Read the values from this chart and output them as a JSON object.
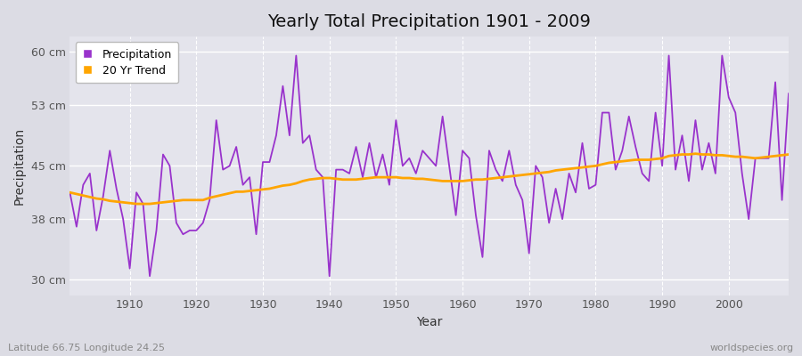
{
  "title": "Yearly Total Precipitation 1901 - 2009",
  "xlabel": "Year",
  "ylabel": "Precipitation",
  "subtitle_left": "Latitude 66.75 Longitude 24.25",
  "subtitle_right": "worldspecies.org",
  "legend_labels": [
    "Precipitation",
    "20 Yr Trend"
  ],
  "precip_color": "#9933CC",
  "trend_color": "#FFA500",
  "bg_color": "#DCDCE4",
  "plot_bg_color": "#E4E4EC",
  "ylim": [
    28,
    62
  ],
  "yticks": [
    30,
    38,
    45,
    53,
    60
  ],
  "ytick_labels": [
    "30 cm",
    "38 cm",
    "45 cm",
    "53 cm",
    "60 cm"
  ],
  "years": [
    1901,
    1902,
    1903,
    1904,
    1905,
    1906,
    1907,
    1908,
    1909,
    1910,
    1911,
    1912,
    1913,
    1914,
    1915,
    1916,
    1917,
    1918,
    1919,
    1920,
    1921,
    1922,
    1923,
    1924,
    1925,
    1926,
    1927,
    1928,
    1929,
    1930,
    1931,
    1932,
    1933,
    1934,
    1935,
    1936,
    1937,
    1938,
    1939,
    1940,
    1941,
    1942,
    1943,
    1944,
    1945,
    1946,
    1947,
    1948,
    1949,
    1950,
    1951,
    1952,
    1953,
    1954,
    1955,
    1956,
    1957,
    1958,
    1959,
    1960,
    1961,
    1962,
    1963,
    1964,
    1965,
    1966,
    1967,
    1968,
    1969,
    1970,
    1971,
    1972,
    1973,
    1974,
    1975,
    1976,
    1977,
    1978,
    1979,
    1980,
    1981,
    1982,
    1983,
    1984,
    1985,
    1986,
    1987,
    1988,
    1989,
    1990,
    1991,
    1992,
    1993,
    1994,
    1995,
    1996,
    1997,
    1998,
    1999,
    2000,
    2001,
    2002,
    2003,
    2004,
    2005,
    2006,
    2007,
    2008,
    2009
  ],
  "precip": [
    41.5,
    37.0,
    42.5,
    44.0,
    36.5,
    41.0,
    47.0,
    42.0,
    38.0,
    31.5,
    41.5,
    40.0,
    30.5,
    36.5,
    46.5,
    45.0,
    37.5,
    36.0,
    36.5,
    36.5,
    37.5,
    40.5,
    51.0,
    44.5,
    45.0,
    47.5,
    42.5,
    43.5,
    36.0,
    45.5,
    45.5,
    49.0,
    55.5,
    49.0,
    59.5,
    48.0,
    49.0,
    44.5,
    43.5,
    30.5,
    44.5,
    44.5,
    44.0,
    47.5,
    43.5,
    48.0,
    43.5,
    46.5,
    42.5,
    51.0,
    45.0,
    46.0,
    44.0,
    47.0,
    46.0,
    45.0,
    51.5,
    45.0,
    38.5,
    47.0,
    46.0,
    38.5,
    33.0,
    47.0,
    44.5,
    43.0,
    47.0,
    42.5,
    40.5,
    33.5,
    45.0,
    43.5,
    37.5,
    42.0,
    38.0,
    44.0,
    41.5,
    48.0,
    42.0,
    42.5,
    52.0,
    52.0,
    44.5,
    47.0,
    51.5,
    47.5,
    44.0,
    43.0,
    52.0,
    45.0,
    59.5,
    44.5,
    49.0,
    43.0,
    51.0,
    44.5,
    48.0,
    44.0,
    59.5,
    54.0,
    52.0,
    44.0,
    38.0,
    46.0,
    46.0,
    46.0,
    56.0,
    40.5,
    54.5
  ],
  "trend": [
    41.5,
    41.3,
    41.1,
    40.9,
    40.7,
    40.6,
    40.4,
    40.3,
    40.2,
    40.1,
    40.0,
    40.0,
    40.0,
    40.1,
    40.2,
    40.3,
    40.4,
    40.5,
    40.5,
    40.5,
    40.5,
    40.8,
    41.0,
    41.2,
    41.4,
    41.6,
    41.6,
    41.7,
    41.8,
    41.9,
    42.0,
    42.2,
    42.4,
    42.5,
    42.7,
    43.0,
    43.2,
    43.3,
    43.4,
    43.4,
    43.3,
    43.2,
    43.2,
    43.2,
    43.3,
    43.4,
    43.5,
    43.5,
    43.5,
    43.5,
    43.4,
    43.4,
    43.3,
    43.3,
    43.2,
    43.1,
    43.0,
    43.0,
    43.0,
    43.0,
    43.1,
    43.2,
    43.2,
    43.3,
    43.4,
    43.5,
    43.6,
    43.7,
    43.8,
    43.9,
    44.0,
    44.1,
    44.2,
    44.4,
    44.5,
    44.6,
    44.7,
    44.8,
    44.9,
    45.0,
    45.2,
    45.4,
    45.5,
    45.6,
    45.7,
    45.8,
    45.8,
    45.8,
    45.9,
    46.0,
    46.3,
    46.4,
    46.5,
    46.5,
    46.6,
    46.5,
    46.5,
    46.4,
    46.4,
    46.3,
    46.2,
    46.2,
    46.1,
    46.0,
    46.1,
    46.2,
    46.3,
    46.4,
    46.5
  ]
}
